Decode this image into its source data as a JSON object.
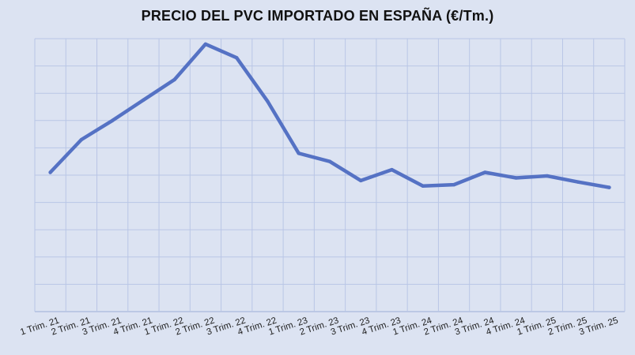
{
  "chart_data": {
    "type": "line",
    "title": "PRECIO DEL PVC IMPORTADO EN ESPAÑA (€/Tm.)",
    "xlabel": "",
    "ylabel": "",
    "categories": [
      "1 Trim. 21",
      "2 Trim. 21",
      "3 Trim. 21",
      "4 Trim. 21",
      "1 Trim. 22",
      "2 Trim. 22",
      "3 Trim. 22",
      "4 Trim. 22",
      "1 Trim. 23",
      "2 Trim. 23",
      "3 Trim. 23",
      "4 Trim. 23",
      "1 Trim. 24",
      "2 Trim. 24",
      "3 Trim. 24",
      "4 Trim. 24",
      "1 Trim. 25",
      "2 Trim. 25",
      "3 Trim. 25"
    ],
    "series": [
      {
        "values": [
          5.1,
          6.3,
          7.0,
          7.75,
          8.5,
          9.8,
          9.3,
          7.7,
          5.8,
          5.5,
          4.8,
          5.2,
          4.6,
          4.65,
          5.1,
          4.9,
          4.97,
          4.75,
          4.55
        ],
        "color": "#5572c4"
      }
    ],
    "ylim": [
      0,
      10
    ],
    "y_gridlines": 10,
    "grid": true,
    "y_tick_labels_visible": false,
    "legend": "none"
  }
}
